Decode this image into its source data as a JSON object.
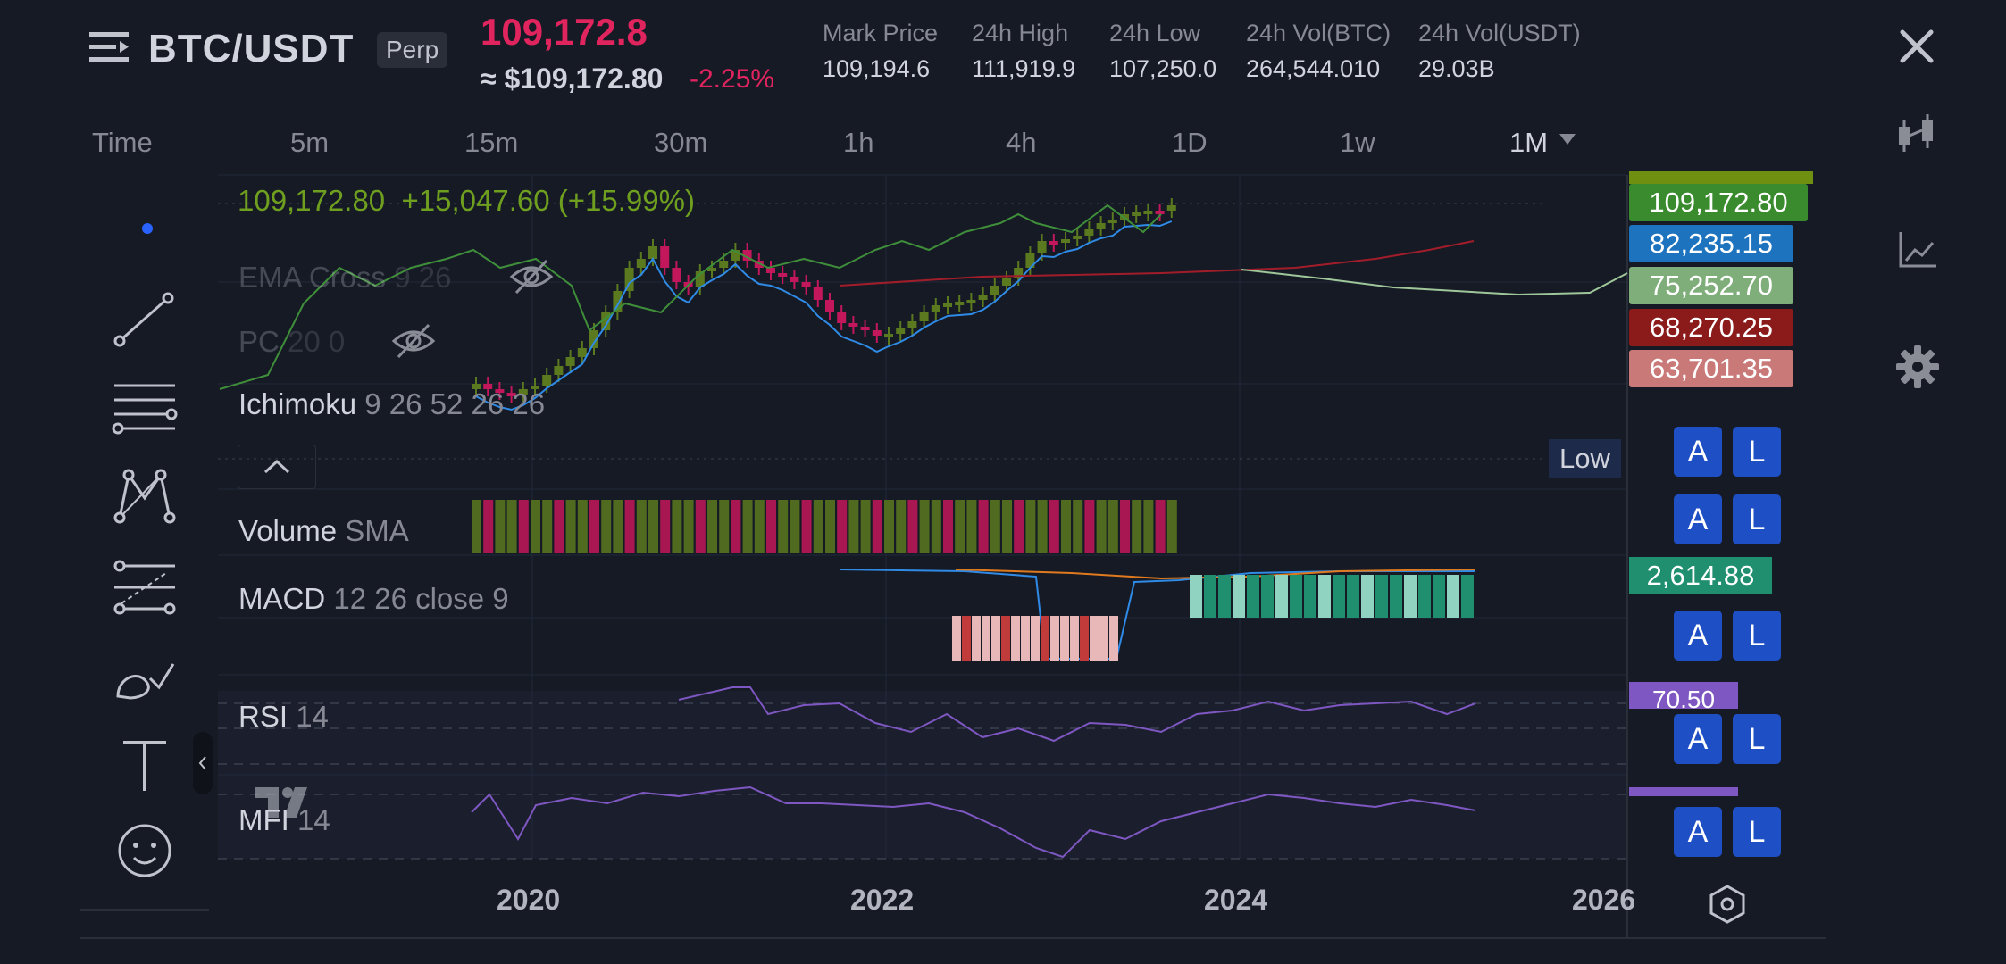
{
  "header": {
    "pair": "BTC/USDT",
    "badge": "Perp",
    "last_price": "109,172.8",
    "fiat_price": "≈ $109,172.80",
    "change": "-2.25%",
    "stats": [
      {
        "label": "Mark Price",
        "value": "109,194.6"
      },
      {
        "label": "24h High",
        "value": "111,919.9"
      },
      {
        "label": "24h Low",
        "value": "107,250.0"
      },
      {
        "label": "24h Vol(BTC)",
        "value": "264,544.010"
      },
      {
        "label": "24h Vol(USDT)",
        "value": "29.03B"
      }
    ]
  },
  "timeframes": {
    "label": "Time",
    "items": [
      "5m",
      "15m",
      "30m",
      "1h",
      "4h",
      "1D",
      "1w",
      "1M"
    ],
    "selected": "1M"
  },
  "legend": {
    "price_line": "109,172.80",
    "price_change": "+15,047.60 (+15.99%)",
    "indicators": [
      {
        "name": "EMA Cross",
        "params": "9 26"
      },
      {
        "name": "PC",
        "params": "20 0"
      },
      {
        "name": "Ichimoku",
        "params": "9 26 52 26 26"
      },
      {
        "name": "Volume",
        "params": "SMA"
      },
      {
        "name": "MACD",
        "params": "12 26 close 9"
      },
      {
        "name": "RSI",
        "params": "14"
      },
      {
        "name": "MFI",
        "params": "14"
      }
    ]
  },
  "price_tags": [
    {
      "value": "109,172.80",
      "color": "#3a8a2e"
    },
    {
      "value": "82,235.15",
      "color": "#1e73be"
    },
    {
      "value": "75,252.70",
      "color": "#7fae7a"
    },
    {
      "value": "68,270.25",
      "color": "#8b1a1a"
    },
    {
      "value": "63,701.35",
      "color": "#c97a78"
    }
  ],
  "low_label": "Low",
  "macd_tag": "2,614.88",
  "rsi_tag": "70.50",
  "al_buttons": {
    "a": "A",
    "l": "L"
  },
  "years": [
    "2020",
    "2022",
    "2024",
    "2026"
  ],
  "colors": {
    "background": "#161a25",
    "bull": "#5b7a1f",
    "bear": "#c2185b",
    "ema_fast": "#2f8be6",
    "ema_slow": "#a21d2a",
    "ichimoku": "#3f8f3a",
    "rsi": "#7e57c2"
  }
}
